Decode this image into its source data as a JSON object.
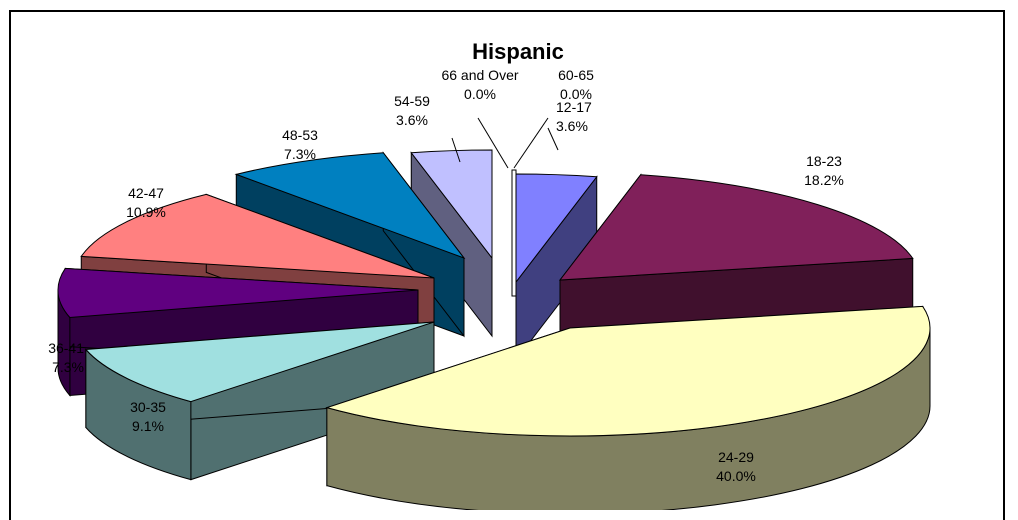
{
  "chart_data": {
    "type": "pie",
    "title": "Hispanic",
    "style": "3d-exploded",
    "slices": [
      {
        "label": "12-17",
        "value": 3.6,
        "value_text": "3.6%",
        "top": "#8080ff",
        "side": "#404080"
      },
      {
        "label": "18-23",
        "value": 18.2,
        "value_text": "18.2%",
        "top": "#80205a",
        "side": "#40102d"
      },
      {
        "label": "24-29",
        "value": 40.0,
        "value_text": "40.0%",
        "top": "#ffffc0",
        "side": "#808060"
      },
      {
        "label": "30-35",
        "value": 9.1,
        "value_text": "9.1%",
        "top": "#a0e0e0",
        "side": "#507070"
      },
      {
        "label": "36-41",
        "value": 7.3,
        "value_text": "7.3%",
        "top": "#600080",
        "side": "#300040"
      },
      {
        "label": "42-47",
        "value": 10.9,
        "value_text": "10.9%",
        "top": "#ff8080",
        "side": "#804040"
      },
      {
        "label": "48-53",
        "value": 7.3,
        "value_text": "7.3%",
        "top": "#0080c0",
        "side": "#004060"
      },
      {
        "label": "54-59",
        "value": 3.6,
        "value_text": "3.6%",
        "top": "#c0c0ff",
        "side": "#606080"
      },
      {
        "label": "66 and Over",
        "value": 0.0,
        "value_text": "0.0%",
        "top": "#ffffff",
        "side": "#ffffff"
      },
      {
        "label": "60-65",
        "value": 0.0,
        "value_text": "0.0%",
        "top": "#ffffff",
        "side": "#ffffff"
      }
    ]
  }
}
